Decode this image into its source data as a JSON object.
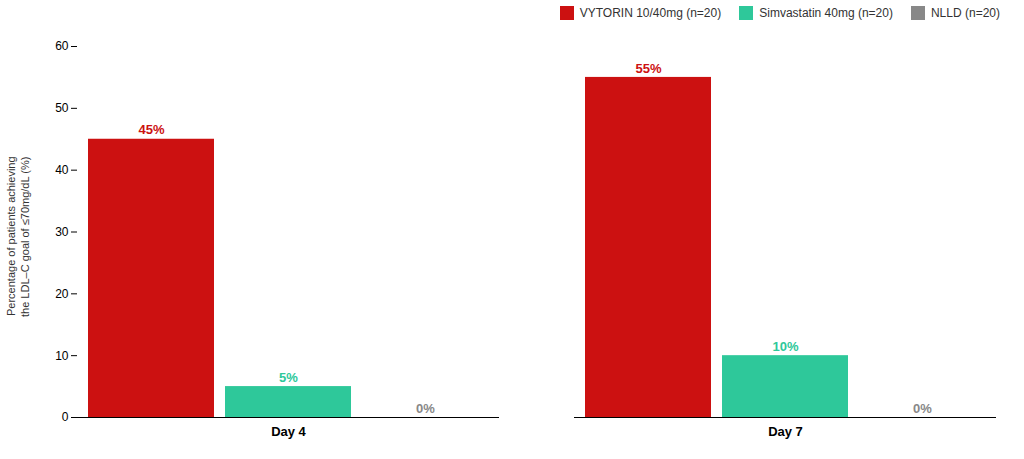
{
  "chart_data": {
    "type": "bar",
    "categories": [
      "Day 4",
      "Day 7"
    ],
    "series": [
      {
        "name": "VYTORIN 10/40mg (n=20)",
        "color": "#cc1111",
        "values": [
          45,
          55
        ],
        "value_labels": [
          "45%",
          "55%"
        ]
      },
      {
        "name": "Simvastatin 40mg (n=20)",
        "color": "#2ec89a",
        "values": [
          5,
          10
        ],
        "value_labels": [
          "5%",
          "10%"
        ]
      },
      {
        "name": "NLLD (n=20)",
        "color": "#888888",
        "values": [
          0,
          0
        ],
        "value_labels": [
          "0%",
          "0%"
        ]
      }
    ],
    "ylabel": "Percentage of patients achieving\nthe LDL–C goal of ≤70mg/dL (%)",
    "ylim": [
      0,
      60
    ],
    "yticks": [
      0,
      10,
      20,
      30,
      40,
      50,
      60
    ],
    "grid": false,
    "legend": "upper right",
    "data_labels": true
  }
}
